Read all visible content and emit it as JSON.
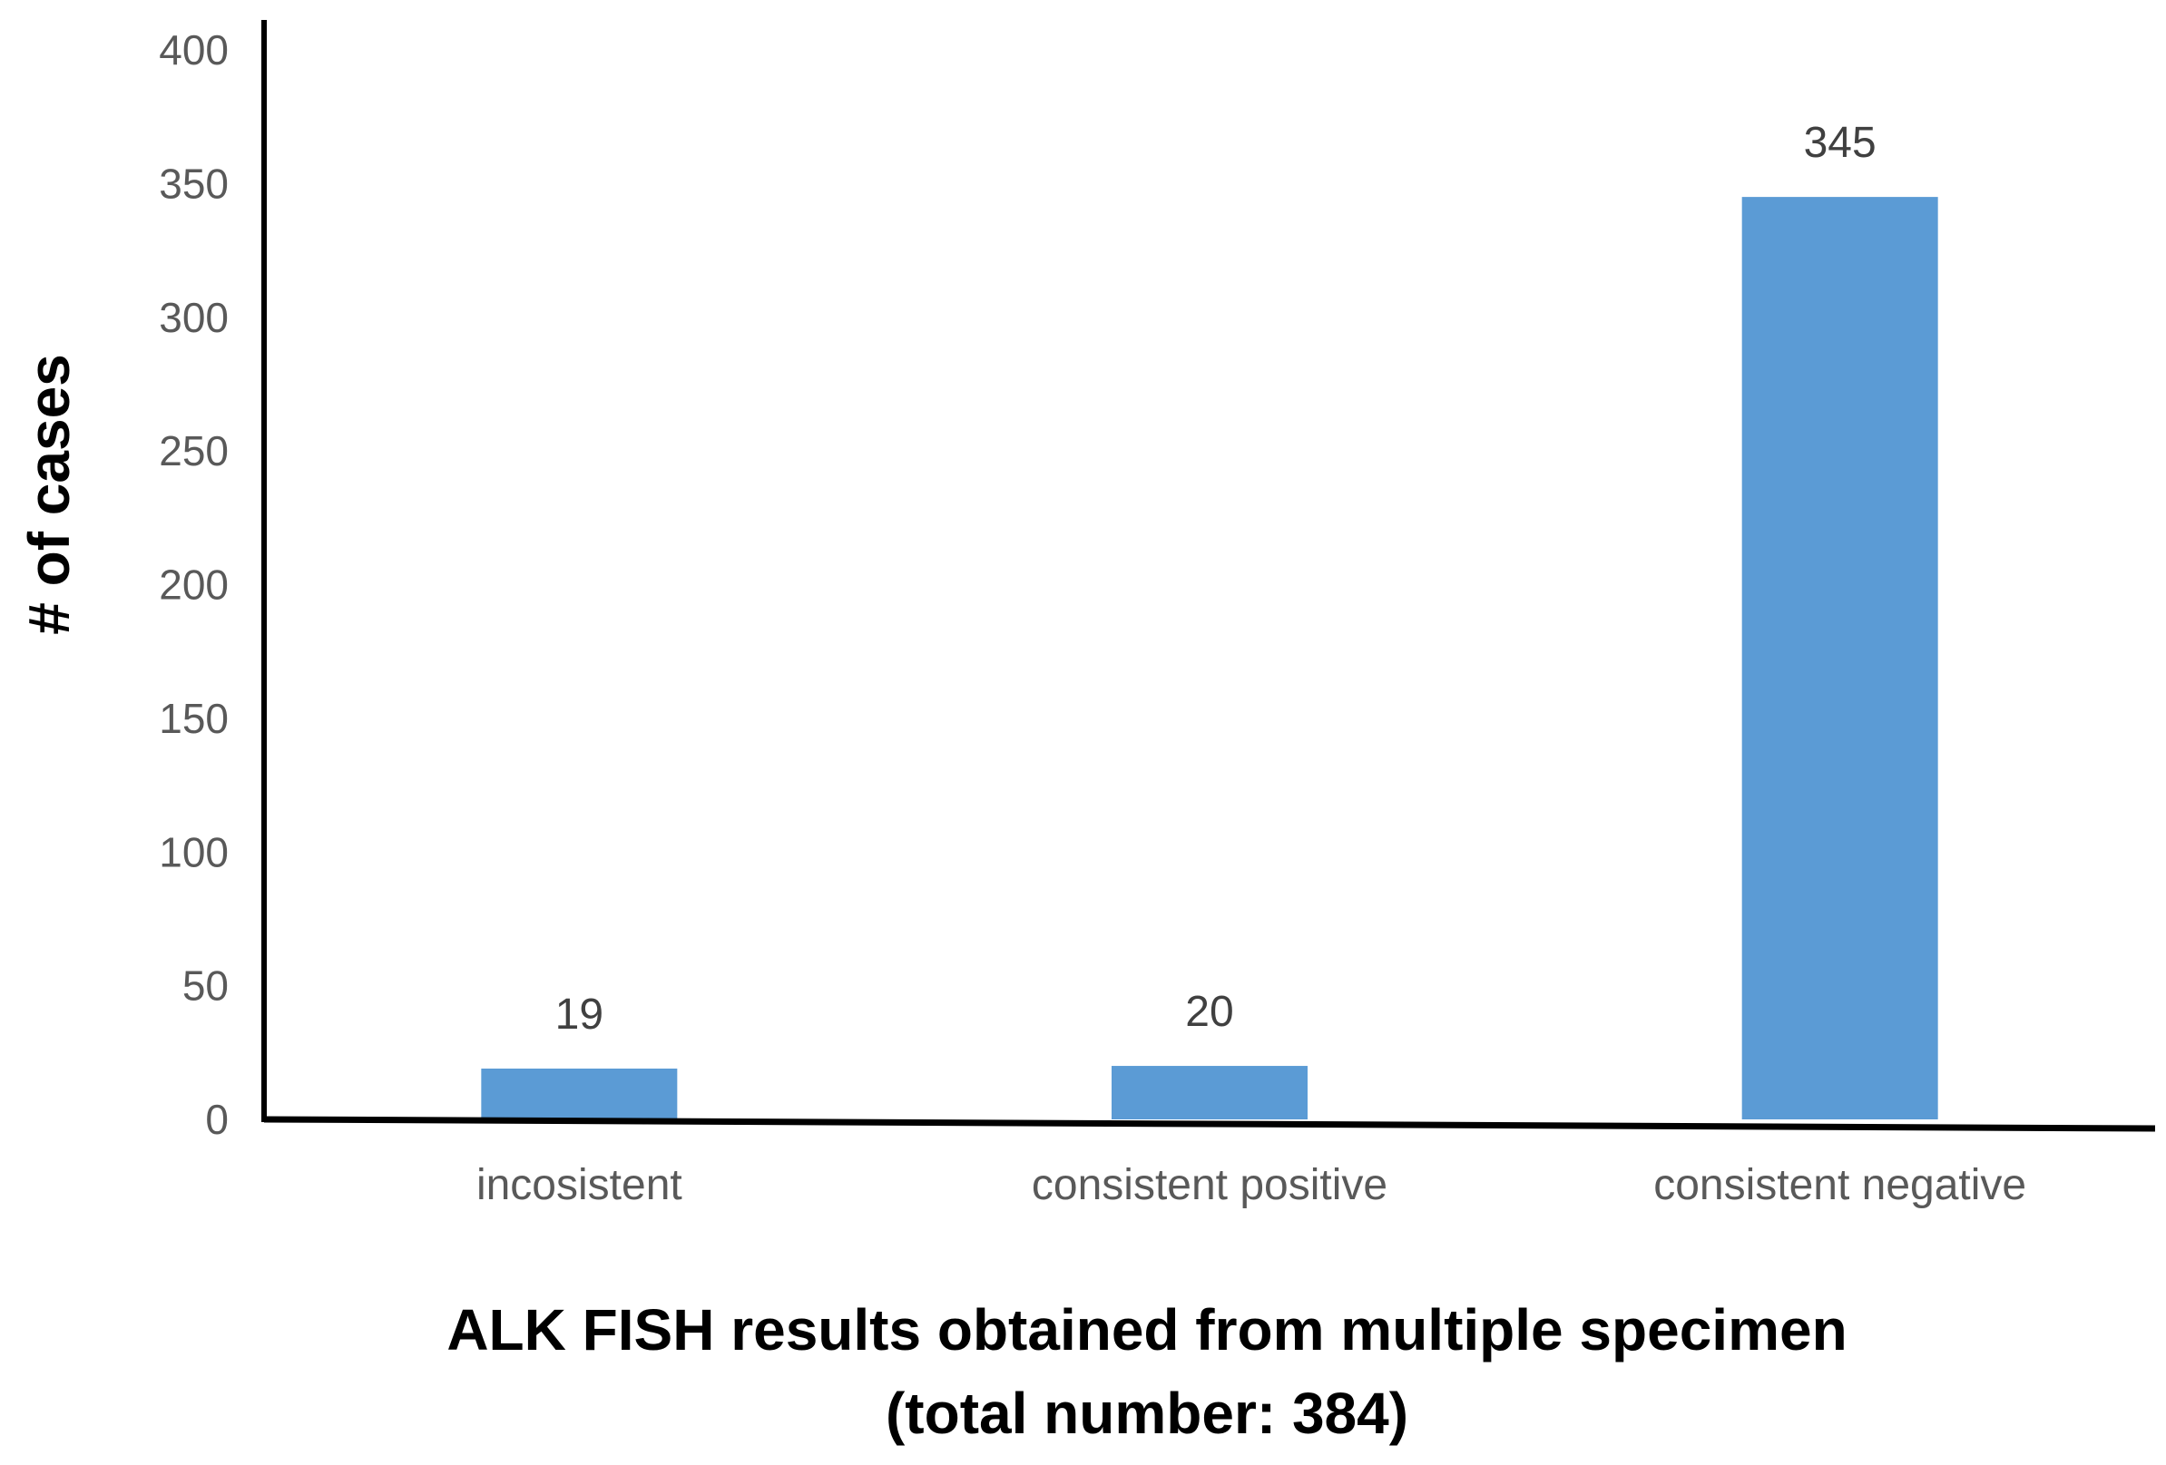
{
  "chart_data": {
    "type": "bar",
    "categories": [
      "incosistent",
      "consistent positive",
      "consistent negative"
    ],
    "values": [
      19,
      20,
      345
    ],
    "data_labels": [
      "19",
      "20",
      "345"
    ],
    "title": "",
    "xlabel_line1": "ALK FISH results obtained from multiple specimen",
    "xlabel_line2": "(total number: 384)",
    "ylabel": "# of cases",
    "ylim": [
      0,
      400
    ],
    "yticks": [
      0,
      50,
      100,
      150,
      200,
      250,
      300,
      350,
      400
    ],
    "grid": false,
    "legend": "none",
    "bar_color": "#5B9BD5",
    "axis_color": "#000000"
  }
}
